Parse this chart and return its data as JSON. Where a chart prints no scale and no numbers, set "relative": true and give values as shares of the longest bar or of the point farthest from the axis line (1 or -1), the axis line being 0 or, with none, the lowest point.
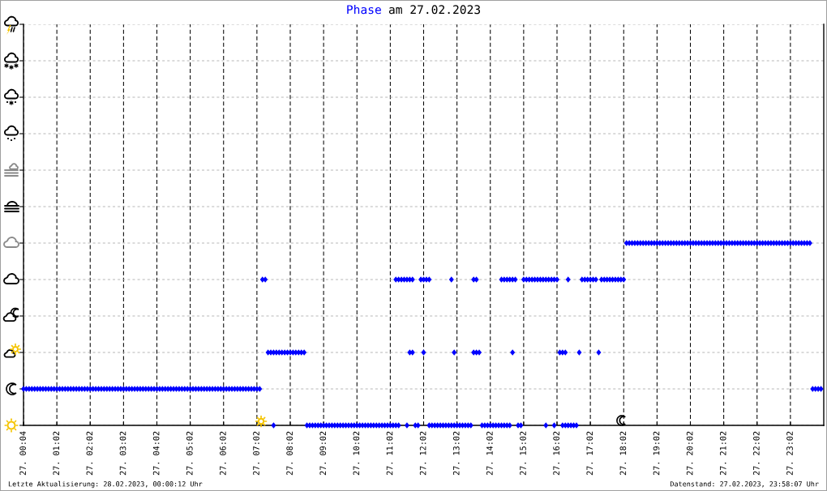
{
  "chart_data": {
    "type": "scatter",
    "title": "Phase am 27.02.2023",
    "relative": true,
    "marker": "diamond",
    "grid": true,
    "tick_labels": "x",
    "categories": [
      "27. 00:04",
      null,
      null,
      null,
      null,
      null,
      null,
      null,
      null,
      null,
      null,
      null,
      "27. 01:02",
      null,
      null,
      null,
      null,
      null,
      null,
      null,
      null,
      null,
      null,
      null,
      "27. 02:02",
      null,
      null,
      null,
      null,
      null,
      null,
      null,
      null,
      null,
      null,
      null,
      "27. 03:02",
      null,
      null,
      null,
      null,
      null,
      null,
      null,
      null,
      null,
      null,
      null,
      "27. 04:02",
      null,
      null,
      null,
      null,
      null,
      null,
      null,
      null,
      null,
      null,
      null,
      "27. 05:02",
      null,
      null,
      null,
      null,
      null,
      null,
      null,
      null,
      null,
      null,
      null,
      "27. 06:02",
      null,
      null,
      null,
      null,
      null,
      null,
      null,
      null,
      null,
      null,
      null,
      "27. 07:02",
      null,
      null,
      null,
      null,
      null,
      null,
      null,
      null,
      null,
      null,
      null,
      "27. 08:02",
      null,
      null,
      null,
      null,
      null,
      null,
      null,
      null,
      null,
      null,
      null,
      "27. 09:02",
      null,
      null,
      null,
      null,
      null,
      null,
      null,
      null,
      null,
      null,
      null,
      "27. 10:02",
      null,
      null,
      null,
      null,
      null,
      null,
      null,
      null,
      null,
      null,
      null,
      "27. 11:02",
      null,
      null,
      null,
      null,
      null,
      null,
      null,
      null,
      null,
      null,
      null,
      "27. 12:02",
      null,
      null,
      null,
      null,
      null,
      null,
      null,
      null,
      null,
      null,
      null,
      "27. 13:02",
      null,
      null,
      null,
      null,
      null,
      null,
      null,
      null,
      null,
      null,
      null,
      "27. 14:02",
      null,
      null,
      null,
      null,
      null,
      null,
      null,
      null,
      null,
      null,
      null,
      "27. 15:02",
      null,
      null,
      null,
      null,
      null,
      null,
      null,
      null,
      null,
      null,
      null,
      "27. 16:02",
      null,
      null,
      null,
      null,
      null,
      null,
      null,
      null,
      null,
      null,
      null,
      "27. 17:02",
      null,
      null,
      null,
      null,
      null,
      null,
      null,
      null,
      null,
      null,
      null,
      "27. 18:02",
      null,
      null,
      null,
      null,
      null,
      null,
      null,
      null,
      null,
      null,
      null,
      "27. 19:02",
      null,
      null,
      null,
      null,
      null,
      null,
      null,
      null,
      null,
      null,
      null,
      "27. 20:02",
      null,
      null,
      null,
      null,
      null,
      null,
      null,
      null,
      null,
      null,
      null,
      "27. 21:02",
      null,
      null,
      null,
      null,
      null,
      null,
      null,
      null,
      null,
      null,
      null,
      "27. 22:02",
      null,
      null,
      null,
      null,
      null,
      null,
      null,
      null,
      null,
      null,
      null,
      "27. 23:02",
      null,
      null,
      null,
      null,
      null,
      null,
      null,
      null,
      null,
      null,
      null
    ],
    "series": [
      {
        "color": "#0000ff",
        "values": [
          0.2,
          0.2,
          0.2,
          0.2,
          0.2,
          0.2,
          0.2,
          0.2,
          0.2,
          0.2,
          0.2,
          0.2,
          0.2,
          0.2,
          0.2,
          0.2,
          0.2,
          0.2,
          0.2,
          0.2,
          0.2,
          0.2,
          0.2,
          0.2,
          0.2,
          0.2,
          0.2,
          0.2,
          0.2,
          0.2,
          0.2,
          0.2,
          0.2,
          0.2,
          0.2,
          0.2,
          0.2,
          0.2,
          0.2,
          0.2,
          0.2,
          0.2,
          0.2,
          0.2,
          0.2,
          0.2,
          0.2,
          0.2,
          0.2,
          0.2,
          0.2,
          0.2,
          0.2,
          0.2,
          0.2,
          0.2,
          0.2,
          0.2,
          0.2,
          0.2,
          0.2,
          0.2,
          0.2,
          0.2,
          0.2,
          0.2,
          0.2,
          0.2,
          0.2,
          0.2,
          0.2,
          0.2,
          0.2,
          0.2,
          0.2,
          0.2,
          0.2,
          0.2,
          0.2,
          0.2,
          0.2,
          0.2,
          0.2,
          0.2,
          0.2,
          0.2,
          0.8,
          0.8,
          0.4,
          0.4,
          0.4,
          0.4,
          0.4,
          0.4,
          0.4,
          0.4,
          0.4,
          0.4,
          0.4,
          0.4,
          0.4,
          0.4,
          0,
          0,
          0,
          0,
          0,
          0,
          0,
          0,
          0,
          0,
          0,
          0,
          0,
          0,
          0,
          0,
          0,
          0,
          0,
          0,
          0,
          0,
          0,
          0,
          0,
          0,
          0,
          0,
          0,
          0,
          0,
          0,
          0.8,
          0.8,
          0.8,
          0.8,
          0.8,
          0.8,
          0.8,
          0,
          0,
          0.8,
          0.8,
          0.8,
          0.8,
          0,
          0,
          0,
          0,
          0,
          0,
          0,
          0,
          0,
          0,
          0,
          0,
          0,
          0,
          0,
          0.4,
          0.4,
          0.4,
          0,
          0,
          0,
          0,
          0,
          0,
          0,
          0,
          0,
          0,
          0,
          0.4,
          0.8,
          0,
          0,
          0.8,
          0.8,
          0.8,
          0.8,
          0.8,
          0.8,
          0.8,
          0.8,
          0,
          0.8,
          0.8,
          0,
          0.8,
          0.4,
          0.4,
          0.4,
          0.8,
          0,
          0,
          0,
          0.4,
          0.8,
          0.8,
          0.8,
          0.8,
          0.8,
          0.8,
          0.4,
          0.8,
          0.8,
          0.8,
          0.8,
          0.8,
          0.8,
          0.8,
          0.8,
          0.8,
          1,
          1,
          1,
          1,
          1,
          1,
          1,
          1,
          1,
          1,
          1,
          1,
          1,
          1,
          1,
          1,
          1,
          1,
          1,
          1,
          1,
          1,
          1,
          1,
          1,
          1,
          1,
          1,
          1,
          1,
          1,
          1,
          1,
          1,
          1,
          1,
          1,
          1,
          1,
          1,
          1,
          1,
          1,
          1,
          1,
          1,
          1,
          1,
          1,
          1,
          1,
          1,
          1,
          1,
          1,
          1,
          1,
          1,
          1,
          1,
          1,
          1,
          1,
          1,
          1,
          1,
          1,
          0.2,
          0.2,
          0.2,
          0.2
        ]
      },
      {
        "color": "#0000ff",
        "values": [
          null,
          null,
          null,
          null,
          null,
          null,
          null,
          null,
          null,
          null,
          null,
          null,
          null,
          null,
          null,
          null,
          null,
          null,
          null,
          null,
          null,
          null,
          null,
          null,
          null,
          null,
          null,
          null,
          null,
          null,
          null,
          null,
          null,
          null,
          null,
          null,
          null,
          null,
          null,
          null,
          null,
          null,
          null,
          null,
          null,
          null,
          null,
          null,
          null,
          null,
          null,
          null,
          null,
          null,
          null,
          null,
          null,
          null,
          null,
          null,
          null,
          null,
          null,
          null,
          null,
          null,
          null,
          null,
          null,
          null,
          null,
          null,
          null,
          null,
          null,
          null,
          null,
          null,
          null,
          null,
          null,
          null,
          null,
          null,
          null,
          null,
          null,
          null,
          null,
          null,
          0,
          null,
          null,
          null,
          null,
          null,
          null,
          null,
          null,
          null,
          null,
          null,
          null,
          null,
          null,
          null,
          null,
          null,
          null,
          null,
          null,
          null,
          null,
          null,
          null,
          null,
          null,
          null,
          null,
          null,
          null,
          null,
          null,
          null,
          null,
          null,
          null,
          null,
          null,
          null,
          null,
          null,
          null,
          null,
          0,
          0,
          null,
          null,
          0,
          0.4,
          0.4,
          null,
          null,
          null,
          0.4,
          null,
          0,
          null,
          null,
          null,
          null,
          null,
          null,
          null,
          0.8,
          0.4,
          null,
          null,
          null,
          null,
          null,
          null,
          0.8,
          0.8,
          null,
          null,
          null,
          null,
          null,
          null,
          null,
          null,
          0.8,
          0.8,
          0.8,
          0.8,
          0.8,
          null,
          null,
          null,
          null,
          null,
          null,
          null,
          null,
          null,
          null,
          null,
          0.8,
          null,
          null,
          0.8,
          null,
          null,
          0,
          0,
          0,
          null,
          null,
          null,
          null,
          null,
          null,
          null,
          null,
          null,
          null,
          null,
          null,
          null,
          null,
          null,
          null,
          null,
          null,
          null,
          null,
          null,
          null,
          null,
          null,
          null,
          null,
          null,
          null,
          null,
          null,
          null,
          null,
          null,
          null,
          null,
          null,
          null,
          null,
          null,
          null,
          null,
          null,
          null,
          null,
          null,
          null,
          null,
          null,
          null,
          null,
          null,
          null,
          null,
          null,
          null,
          null,
          null,
          null,
          null,
          null,
          null,
          null,
          null,
          null,
          null,
          null,
          null,
          null,
          null,
          null,
          null,
          null,
          null,
          null,
          null,
          null,
          null,
          null,
          null,
          null,
          null,
          null,
          null,
          null,
          null,
          null,
          null,
          null,
          null,
          null,
          null
        ]
      }
    ],
    "annotations": [
      "Letzte Aktualisierung: 28.02.2023, 00:00:12 Uhr",
      "Datenstand: 27.02.2023, 23:58:07 Uhr"
    ]
  }
}
